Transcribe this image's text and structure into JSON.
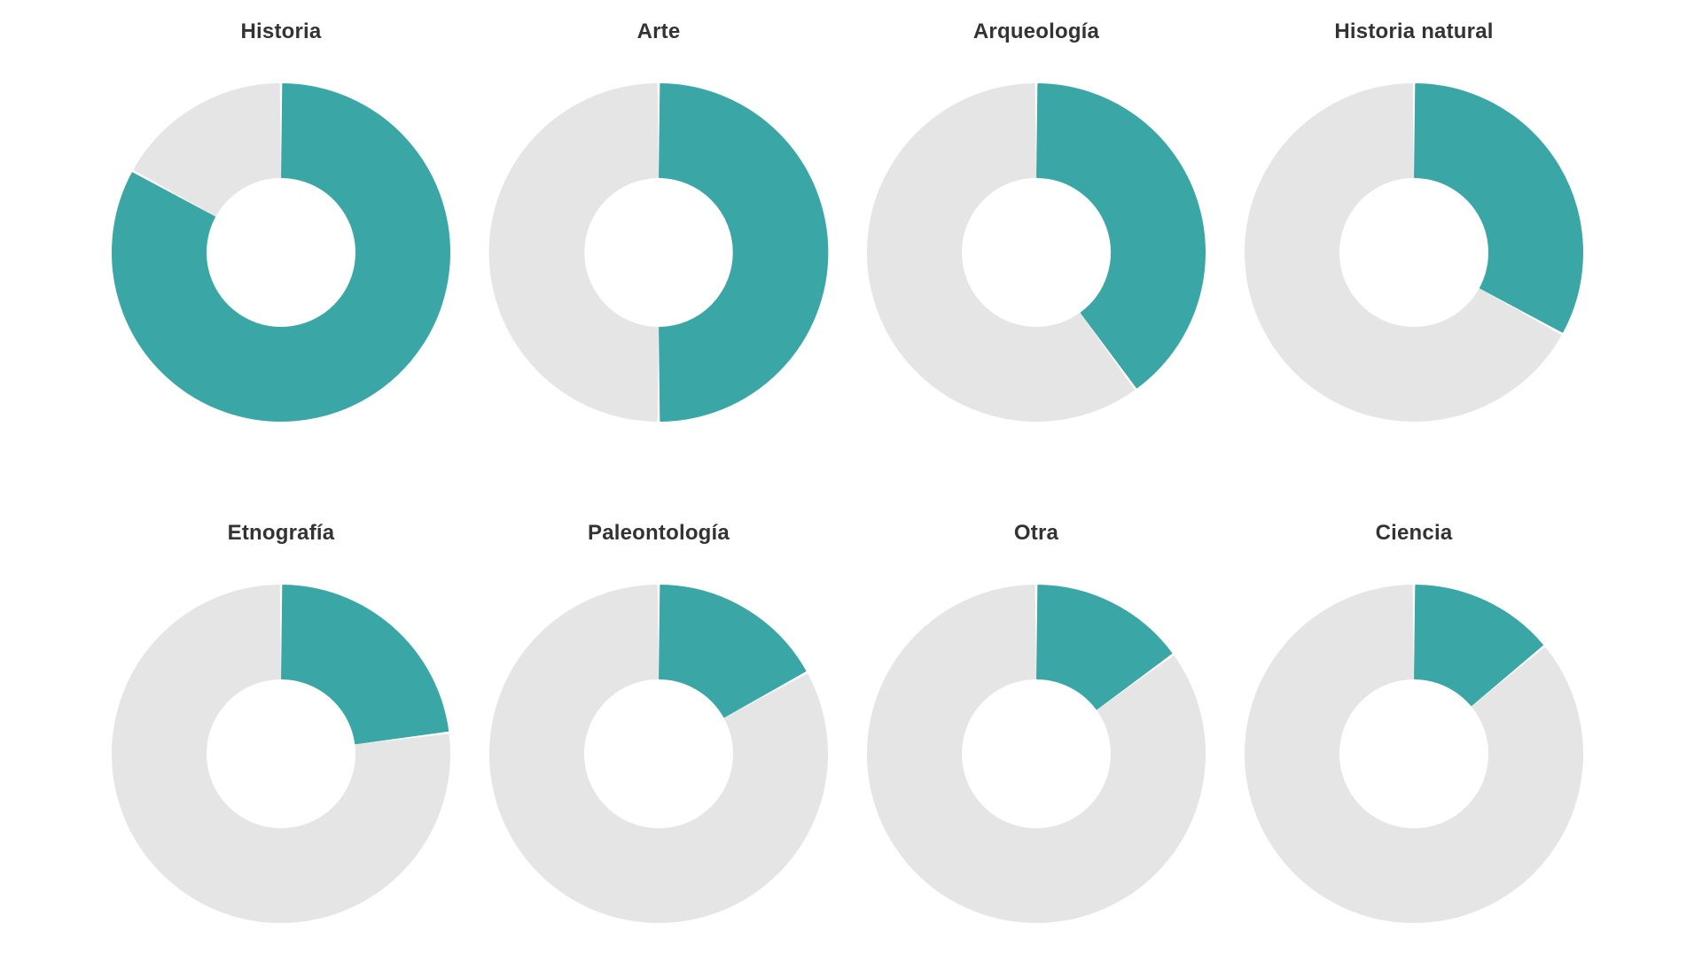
{
  "colors": {
    "value": "#3aa6a6",
    "remainder": "#e5e5e5",
    "background": "#ffffff",
    "title": "#333333"
  },
  "chart_data": [
    {
      "type": "pie",
      "title": "Historia",
      "values": [
        83,
        17
      ]
    },
    {
      "type": "pie",
      "title": "Arte",
      "values": [
        50,
        50
      ]
    },
    {
      "type": "pie",
      "title": "Arqueología",
      "values": [
        40,
        60
      ]
    },
    {
      "type": "pie",
      "title": "Historia natural",
      "values": [
        33,
        67
      ]
    },
    {
      "type": "pie",
      "title": "Etnografía",
      "values": [
        23,
        77
      ]
    },
    {
      "type": "pie",
      "title": "Paleontología",
      "values": [
        17,
        83
      ]
    },
    {
      "type": "pie",
      "title": "Otra",
      "values": [
        15,
        85
      ]
    },
    {
      "type": "pie",
      "title": "Ciencia",
      "values": [
        14,
        86
      ]
    }
  ]
}
